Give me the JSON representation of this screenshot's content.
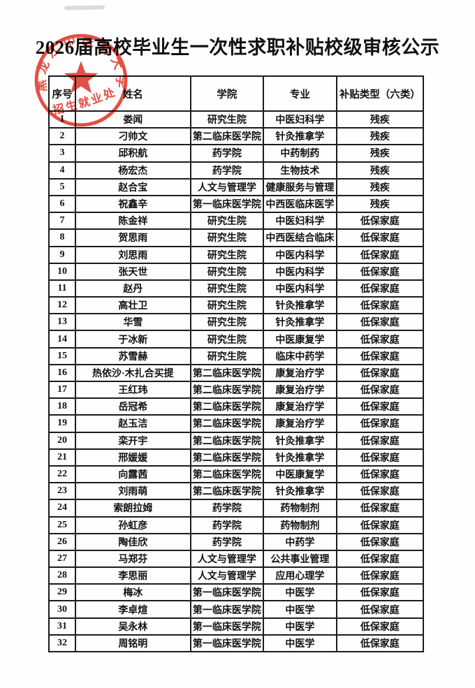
{
  "title": "2026届高校毕业生一次性求职补贴校级审核公示",
  "stamp": {
    "org": "黑龙江中医药大学",
    "dept": "招生就业处"
  },
  "colors": {
    "stamp_red": "#de372b",
    "ink_black": "#1c1c1c"
  },
  "table": {
    "headers": [
      "序号",
      "姓名",
      "学院",
      "专业",
      "补贴类型（六类）"
    ],
    "rows": [
      [
        "1",
        "娄闻",
        "研究生院",
        "中医妇科学",
        "残疾"
      ],
      [
        "2",
        "刁帅文",
        "第二临床医学院",
        "针灸推拿学",
        "残疾"
      ],
      [
        "3",
        "邱积航",
        "药学院",
        "中药制药",
        "残疾"
      ],
      [
        "4",
        "杨宏杰",
        "药学院",
        "生物技术",
        "残疾"
      ],
      [
        "5",
        "赵合宝",
        "人文与管理学",
        "健康服务与管理",
        "残疾"
      ],
      [
        "6",
        "祝鑫辛",
        "第一临床医学院",
        "中西医临床医学",
        "残疾"
      ],
      [
        "7",
        "陈金祥",
        "研究生院",
        "中医妇科学",
        "低保家庭"
      ],
      [
        "8",
        "贺思雨",
        "研究生院",
        "中西医结合临床",
        "低保家庭"
      ],
      [
        "9",
        "刘思雨",
        "研究生院",
        "中医内科学",
        "低保家庭"
      ],
      [
        "10",
        "张天世",
        "研究生院",
        "中医内科学",
        "低保家庭"
      ],
      [
        "11",
        "赵丹",
        "研究生院",
        "中医内科学",
        "低保家庭"
      ],
      [
        "12",
        "高壮卫",
        "研究生院",
        "针灸推拿学",
        "低保家庭"
      ],
      [
        "13",
        "华雪",
        "研究生院",
        "针灸推拿学",
        "低保家庭"
      ],
      [
        "14",
        "于冰新",
        "研究生院",
        "中医康复学",
        "低保家庭"
      ],
      [
        "15",
        "苏雪赫",
        "研究生院",
        "临床中药学",
        "低保家庭"
      ],
      [
        "16",
        "热依沙·木扎合买提",
        "第二临床医学院",
        "康复治疗学",
        "低保家庭"
      ],
      [
        "17",
        "王红玮",
        "第二临床医学院",
        "康复治疗学",
        "低保家庭"
      ],
      [
        "18",
        "岳冠希",
        "第二临床医学院",
        "康复治疗学",
        "低保家庭"
      ],
      [
        "19",
        "赵玉洁",
        "第二临床医学院",
        "康复治疗学",
        "低保家庭"
      ],
      [
        "20",
        "栾开宇",
        "第二临床医学院",
        "针灸推拿学",
        "低保家庭"
      ],
      [
        "21",
        "邢媛媛",
        "第二临床医学院",
        "针灸推拿学",
        "低保家庭"
      ],
      [
        "22",
        "向露茜",
        "第二临床医学院",
        "中医康复学",
        "低保家庭"
      ],
      [
        "23",
        "刘雨萌",
        "第二临床医学院",
        "针灸推拿学",
        "低保家庭"
      ],
      [
        "24",
        "索朗拉姆",
        "药学院",
        "药物制剂",
        "低保家庭"
      ],
      [
        "25",
        "孙虹彦",
        "药学院",
        "药物制剂",
        "低保家庭"
      ],
      [
        "26",
        "陶佳欣",
        "药学院",
        "中药学",
        "低保家庭"
      ],
      [
        "27",
        "马郑芬",
        "人文与管理学",
        "公共事业管理",
        "低保家庭"
      ],
      [
        "28",
        "李思丽",
        "人文与管理学",
        "应用心理学",
        "低保家庭"
      ],
      [
        "29",
        "梅冰",
        "第一临床医学院",
        "中医学",
        "低保家庭"
      ],
      [
        "30",
        "李卓煊",
        "第一临床医学院",
        "中医学",
        "低保家庭"
      ],
      [
        "31",
        "吴永林",
        "第一临床医学院",
        "中医学",
        "低保家庭"
      ],
      [
        "32",
        "周铭明",
        "第一临床医学院",
        "中医学",
        "低保家庭"
      ]
    ]
  }
}
